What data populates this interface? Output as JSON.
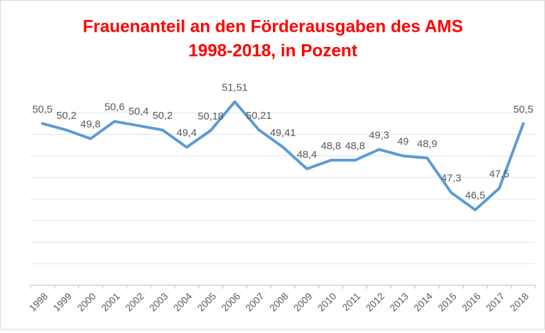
{
  "chart_data": {
    "type": "line",
    "title": [
      "Frauenanteil an den Förderausgaben des AMS",
      "1998-2018, in Pozent"
    ],
    "categories": [
      "1998",
      "1999",
      "2000",
      "2001",
      "2002",
      "2003",
      "2004",
      "2005",
      "2006",
      "2007",
      "2008",
      "2009",
      "2010",
      "2011",
      "2012",
      "2013",
      "2014",
      "2015",
      "2016",
      "2017",
      "2018"
    ],
    "series": [
      {
        "color": "#5b9bd5",
        "values": [
          50.5,
          50.2,
          49.8,
          50.6,
          50.4,
          50.2,
          49.4,
          50.18,
          51.51,
          50.21,
          49.41,
          48.4,
          48.8,
          48.8,
          49.3,
          49,
          48.9,
          47.3,
          46.5,
          47.5,
          50.5
        ],
        "value_labels": [
          "50,5",
          "50,2",
          "49,8",
          "50,6",
          "50,4",
          "50,2",
          "49,4",
          "50,18",
          "51,51",
          "50,21",
          "49,41",
          "48,4",
          "48,8",
          "48,8",
          "49,3",
          "49",
          "48,9",
          "47,3",
          "46,5",
          "47,5",
          "50,5"
        ]
      }
    ],
    "ylim": [
      43,
      52
    ],
    "yticks": [
      44,
      45,
      46,
      47,
      48,
      49,
      50,
      51
    ],
    "grid": true,
    "title_color": "#ff0000"
  }
}
